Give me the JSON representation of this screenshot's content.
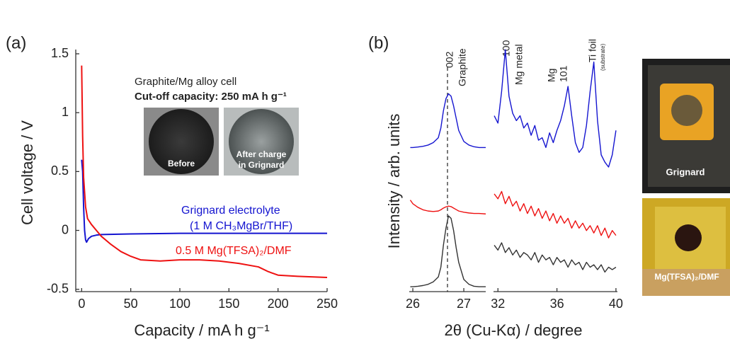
{
  "panels": [
    {
      "label": "(a)"
    },
    {
      "label": "(b)"
    }
  ],
  "inset": {
    "title": "Graphite/Mg alloy cell",
    "subtitle": "Cut-off capacity: 250 mA h g⁻¹",
    "images": [
      [
        "Before"
      ],
      [
        "After charge",
        "in Grignard"
      ]
    ]
  },
  "photos": [
    {
      "label": "Grignard"
    },
    {
      "label": "Mg(TFSA)₂/DMF"
    }
  ],
  "chart_data": [
    {
      "type": "line",
      "xlabel": "Capacity / mA h g⁻¹",
      "ylabel": "Cell voltage / V",
      "xlim": [
        -6,
        250
      ],
      "ylim": [
        -0.52,
        1.5
      ],
      "xticks": [
        0,
        50,
        100,
        150,
        200,
        250
      ],
      "yticks": [
        1.5,
        1,
        0.5,
        0,
        -0.5
      ],
      "series": [
        {
          "name": "Grignard electrolyte",
          "detail": "(1 M CH₃MgBr/THF)",
          "color": "#1515d0",
          "x": [
            0,
            1,
            2,
            3,
            4,
            5,
            7,
            10,
            15,
            20,
            50,
            100,
            150,
            200,
            250
          ],
          "values": [
            0.6,
            0.5,
            0.2,
            0,
            -0.08,
            -0.1,
            -0.07,
            -0.05,
            -0.04,
            -0.035,
            -0.03,
            -0.025,
            -0.025,
            -0.025,
            -0.025
          ]
        },
        {
          "name": "0.5 M Mg(TFSA)₂/DMF",
          "color": "#ee1111",
          "x": [
            0,
            1,
            2,
            4,
            6,
            10,
            15,
            20,
            30,
            40,
            50,
            60,
            80,
            100,
            120,
            140,
            160,
            180,
            190,
            200,
            220,
            250
          ],
          "values": [
            1.4,
            0.8,
            0.45,
            0.2,
            0.1,
            0.05,
            0,
            -0.05,
            -0.12,
            -0.18,
            -0.22,
            -0.25,
            -0.26,
            -0.25,
            -0.25,
            -0.26,
            -0.28,
            -0.31,
            -0.35,
            -0.38,
            -0.39,
            -0.4
          ]
        }
      ]
    },
    {
      "type": "line",
      "xlabel": "2θ (Cu-Kα) / degree",
      "ylabel": "Intensity / arb. units",
      "xlim": [
        25.93,
        27.43
      ],
      "ylim": [
        0,
        10.2
      ],
      "xticks": [
        26,
        27
      ],
      "ref_x": 26.68,
      "peak_labels": [
        [
          "002",
          "Graphite"
        ]
      ],
      "x": [
        25.95,
        26.0,
        26.1,
        26.2,
        26.3,
        26.4,
        26.5,
        26.55,
        26.6,
        26.65,
        26.7,
        26.75,
        26.8,
        26.85,
        26.9,
        27.0,
        27.1,
        27.2,
        27.3,
        27.43
      ],
      "series": [
        {
          "color": "#1515d0",
          "values": [
            5.9,
            5.9,
            5.92,
            5.95,
            6.0,
            6.1,
            6.3,
            6.7,
            7.4,
            7.9,
            8.1,
            8.0,
            7.6,
            7.1,
            6.6,
            6.15,
            6.0,
            5.93,
            5.9,
            5.9
          ]
        },
        {
          "color": "#ee1111",
          "values": [
            3.75,
            3.6,
            3.45,
            3.35,
            3.3,
            3.28,
            3.3,
            3.35,
            3.42,
            3.47,
            3.5,
            3.48,
            3.42,
            3.36,
            3.3,
            3.25,
            3.22,
            3.2,
            3.2,
            3.18
          ]
        },
        {
          "color": "#333333",
          "values": [
            0.2,
            0.2,
            0.22,
            0.25,
            0.3,
            0.4,
            0.6,
            1.0,
            1.9,
            2.6,
            3.1,
            3.0,
            2.5,
            1.8,
            1.2,
            0.5,
            0.3,
            0.22,
            0.2,
            0.2
          ]
        }
      ]
    },
    {
      "type": "line",
      "xlim": [
        31.7,
        40.1
      ],
      "ylim": [
        0,
        10.2
      ],
      "xticks": [
        32,
        36,
        40
      ],
      "peak_labels": [
        [
          "100",
          "Mg metal"
        ],
        [
          "Mg",
          "101"
        ],
        [
          "Ti foil",
          "(substrate)"
        ]
      ],
      "x": [
        31.75,
        32,
        32.25,
        32.5,
        32.75,
        33,
        33.25,
        33.5,
        33.75,
        34,
        34.25,
        34.5,
        34.75,
        35,
        35.25,
        35.5,
        35.75,
        36,
        36.25,
        36.5,
        36.75,
        37,
        37.25,
        37.5,
        37.75,
        38,
        38.25,
        38.5,
        38.75,
        39,
        39.25,
        39.5,
        39.75,
        40
      ],
      "series": [
        {
          "color": "#1515d0",
          "values": [
            7.2,
            6.9,
            8.2,
            9.9,
            8.0,
            7.3,
            7.0,
            7.2,
            6.7,
            6.9,
            6.4,
            6.8,
            6.2,
            6.3,
            5.9,
            6.5,
            6.1,
            6.6,
            7.0,
            7.6,
            8.4,
            7.2,
            6.1,
            5.7,
            5.9,
            6.8,
            8.2,
            9.4,
            7.0,
            5.6,
            5.3,
            5.1,
            5.6,
            6.6
          ]
        },
        {
          "color": "#ee1111",
          "values": [
            4.0,
            3.8,
            4.1,
            3.6,
            3.9,
            3.5,
            3.7,
            3.3,
            3.6,
            3.2,
            3.5,
            3.1,
            3.4,
            3.0,
            3.3,
            2.9,
            3.2,
            2.8,
            3.1,
            2.8,
            3.0,
            2.6,
            2.9,
            2.6,
            2.8,
            2.5,
            2.7,
            2.4,
            2.7,
            2.3,
            2.6,
            2.2,
            2.5,
            2.3
          ]
        },
        {
          "color": "#333333",
          "values": [
            1.9,
            1.7,
            2.0,
            1.6,
            1.8,
            1.5,
            1.7,
            1.4,
            1.6,
            1.5,
            1.3,
            1.6,
            1.2,
            1.5,
            1.3,
            1.4,
            1.1,
            1.4,
            1.2,
            1.3,
            1.0,
            1.3,
            1.1,
            1.2,
            0.9,
            1.2,
            1.0,
            1.1,
            0.9,
            1.1,
            0.8,
            1.0,
            0.9,
            1.0
          ]
        }
      ]
    }
  ]
}
